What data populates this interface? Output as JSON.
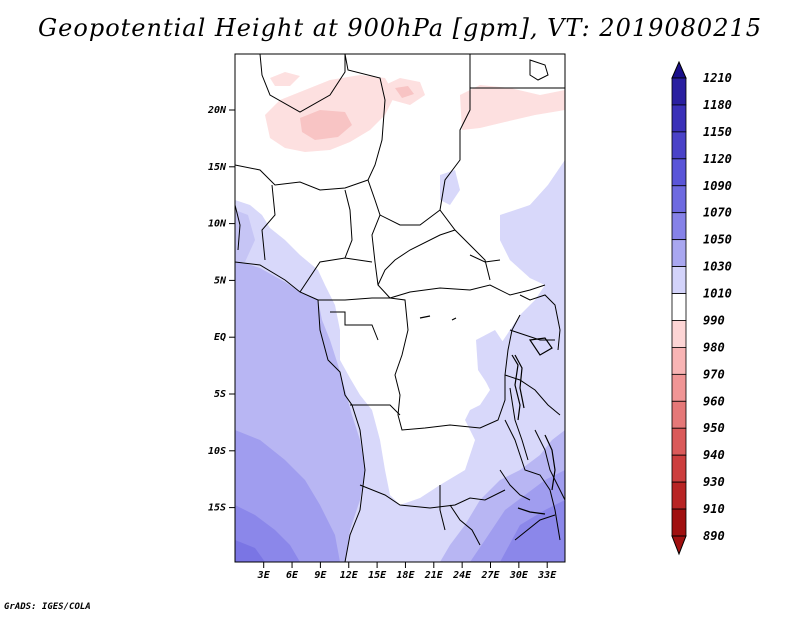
{
  "title": "Geopotential Height at 900hPa [gpm], VT: 2019080215",
  "footer": "GrADS: IGES/COLA",
  "map": {
    "lat_labels": [
      "20N",
      "15N",
      "10N",
      "5N",
      "EQ",
      "5S",
      "10S",
      "15S"
    ],
    "lon_labels": [
      "3E",
      "6E",
      "9E",
      "12E",
      "15E",
      "18E",
      "21E",
      "24E",
      "27E",
      "30E",
      "33E"
    ]
  },
  "colorbar": {
    "labels": [
      "1210",
      "1180",
      "1150",
      "1120",
      "1090",
      "1070",
      "1050",
      "1030",
      "1010",
      "990",
      "980",
      "970",
      "960",
      "950",
      "940",
      "930",
      "910",
      "890"
    ],
    "colors": [
      "#1a0f8a",
      "#2a1fa0",
      "#3a30b8",
      "#4a42c8",
      "#5a55d8",
      "#6e6ae0",
      "#8682e8",
      "#a9a7f0",
      "#d3d3fa",
      "#ffffff",
      "#fdd5d5",
      "#f8b4b4",
      "#f09595",
      "#e57878",
      "#da5a5a",
      "#cc3e3e",
      "#b82424",
      "#a01010"
    ]
  }
}
